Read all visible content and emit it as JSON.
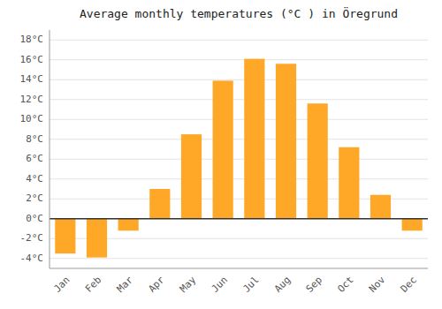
{
  "chart_data": {
    "type": "bar",
    "title": "Average monthly temperatures (°C ) in Öregrund",
    "categories": [
      "Jan",
      "Feb",
      "Mar",
      "Apr",
      "May",
      "Jun",
      "Jul",
      "Aug",
      "Sep",
      "Oct",
      "Nov",
      "Dec"
    ],
    "values": [
      -3.5,
      -3.9,
      -1.2,
      3.0,
      8.5,
      13.9,
      16.1,
      15.6,
      11.6,
      7.2,
      2.4,
      -1.2
    ],
    "color": "#FFA726",
    "ylim": [
      -5,
      19
    ],
    "yticks": [
      {
        "value": -4,
        "label": "-4°C"
      },
      {
        "value": -2,
        "label": "-2°C"
      },
      {
        "value": 0,
        "label": "0°C"
      },
      {
        "value": 2,
        "label": "2°C"
      },
      {
        "value": 4,
        "label": "4°C"
      },
      {
        "value": 6,
        "label": "6°C"
      },
      {
        "value": 8,
        "label": "8°C"
      },
      {
        "value": 10,
        "label": "10°C"
      },
      {
        "value": 12,
        "label": "12°C"
      },
      {
        "value": 14,
        "label": "14°C"
      },
      {
        "value": 16,
        "label": "16°C"
      },
      {
        "value": 18,
        "label": "18°C"
      }
    ],
    "grid": true
  }
}
